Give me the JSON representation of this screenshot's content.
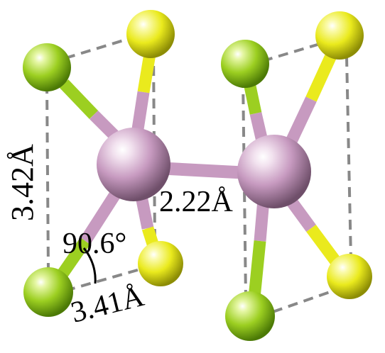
{
  "labels": {
    "vertical_distance": "3.42Å",
    "bond_length": "2.22Å",
    "angle": "90.6°",
    "horizontal_distance": "3.41Å"
  },
  "colors": {
    "center_atom": "#c79ac0",
    "green_atom": "#9ccf21",
    "yellow_atom": "#eaea1d",
    "dashed_line": "#888888"
  }
}
